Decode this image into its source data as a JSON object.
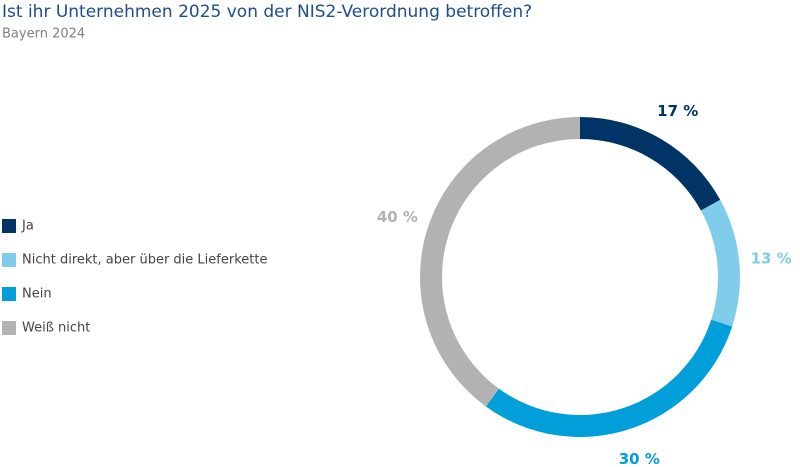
{
  "chart_data": {
    "type": "donut",
    "title": "Ist ihr Unternehmen 2025 von der NIS2-Verordnung betroffen?",
    "subtitle": "Bayern 2024",
    "categories": [
      "Ja",
      "Nicht direkt, aber über die Lieferkette",
      "Nein",
      "Weiß nicht"
    ],
    "values": [
      17,
      13,
      30,
      40
    ],
    "value_labels": [
      "17 %",
      "13 %",
      "30 %",
      "40 %"
    ],
    "colors": [
      "#003366",
      "#7fcdea",
      "#009fd9",
      "#b2b2b2"
    ],
    "legend": "left"
  }
}
